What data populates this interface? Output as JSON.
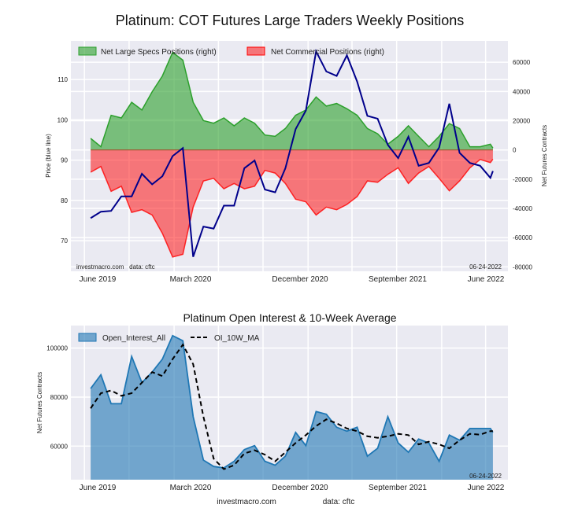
{
  "title": "Platinum: COT Futures Large Traders Weekly Positions",
  "footer": {
    "site": "investmacro.com",
    "source": "data: cftc"
  },
  "colors": {
    "specs": "#2ca02c",
    "commercials": "#ff0000",
    "price": "#00008b",
    "oi": "#1f77b4",
    "ma": "#000000",
    "plot_bg": "#eaeaf2"
  },
  "chart_data": [
    {
      "type": "area",
      "title": "Platinum: COT Futures Large Traders Weekly Positions",
      "ylabel": "Price (blue line)",
      "y2label": "Net Futures Contracts",
      "watermark": "investmacro.com   data: cftc",
      "date_stamp": "06-24-2022",
      "x_tick_labels": [
        "June 2019",
        "March 2020",
        "December 2020",
        "September 2021",
        "June 2022"
      ],
      "y_ticks": [
        70,
        80,
        90,
        100,
        110
      ],
      "y2_ticks": [
        60000,
        40000,
        20000,
        0,
        -20000,
        -40000,
        -60000,
        -80000
      ],
      "ylim": [
        62.4,
        119.6
      ],
      "y2lim": [
        -83000,
        74600
      ],
      "xlim": [
        "2019-04-25",
        "2022-08-01"
      ],
      "grid": true,
      "legend_position": "top-left",
      "x": [
        "2019-06-18",
        "2019-07-16",
        "2019-08-13",
        "2019-09-10",
        "2019-10-08",
        "2019-11-05",
        "2019-12-03",
        "2019-12-31",
        "2020-01-28",
        "2020-02-25",
        "2020-03-24",
        "2020-04-21",
        "2020-05-19",
        "2020-06-16",
        "2020-07-14",
        "2020-08-11",
        "2020-09-08",
        "2020-10-06",
        "2020-11-03",
        "2020-12-01",
        "2020-12-29",
        "2021-01-26",
        "2021-02-23",
        "2021-03-23",
        "2021-04-20",
        "2021-05-18",
        "2021-06-15",
        "2021-07-13",
        "2021-08-10",
        "2021-09-07",
        "2021-10-05",
        "2021-11-02",
        "2021-11-30",
        "2021-12-28",
        "2022-01-25",
        "2022-02-22",
        "2022-03-22",
        "2022-04-19",
        "2022-05-17",
        "2022-06-14",
        "2022-06-21"
      ],
      "series": [
        {
          "name": "Net Large Specs Positions (right)",
          "axis": "right",
          "values": [
            7900,
            2200,
            23700,
            21900,
            32600,
            27300,
            39800,
            50600,
            66700,
            61400,
            32600,
            20100,
            18300,
            21900,
            16500,
            21900,
            18300,
            10200,
            9300,
            14700,
            23700,
            27300,
            36200,
            30000,
            31800,
            28200,
            23700,
            14700,
            11100,
            3900,
            9300,
            16500,
            9300,
            2200,
            9300,
            18000,
            14700,
            2200,
            2200,
            3900,
            1300
          ]
        },
        {
          "name": "Net Commercial Positions (right)",
          "axis": "right",
          "values": [
            -15200,
            -11300,
            -28300,
            -24800,
            -42700,
            -40900,
            -44500,
            -57000,
            -73200,
            -71400,
            -39100,
            -21200,
            -19400,
            -26600,
            -22900,
            -26600,
            -24800,
            -14000,
            -15800,
            -22900,
            -33700,
            -35500,
            -44500,
            -39100,
            -40900,
            -37300,
            -31900,
            -21200,
            -22100,
            -16700,
            -12200,
            -22900,
            -15800,
            -11300,
            -19400,
            -28000,
            -21200,
            -12200,
            -6500,
            -8600,
            -6300
          ]
        },
        {
          "axis": "left",
          "values": [
            75.6,
            77.2,
            77.4,
            81,
            81,
            86.6,
            84,
            86,
            91,
            93,
            66,
            73.5,
            73,
            78.7,
            78.7,
            88,
            89.9,
            82.7,
            82,
            88,
            97.7,
            102.3,
            117,
            112,
            110.9,
            116,
            109.5,
            101,
            100.3,
            93.8,
            90.5,
            95.8,
            88.6,
            89.3,
            93.1,
            104,
            91.8,
            89.3,
            88.6,
            85.6,
            87.3
          ]
        }
      ]
    },
    {
      "type": "area",
      "title": "Platinum Open Interest & 10-Week Average",
      "ylabel": "Net Futures Contracts",
      "date_stamp": "06-24-2022",
      "x_tick_labels": [
        "June 2019",
        "March 2020",
        "December 2020",
        "September 2021",
        "June 2022"
      ],
      "y_ticks": [
        60000,
        80000,
        100000
      ],
      "ylim": [
        46300,
        109200
      ],
      "xlim": [
        "2019-04-25",
        "2022-08-01"
      ],
      "grid": true,
      "legend_position": "top-left",
      "series": [
        {
          "name": "Open_Interest_All",
          "values": [
            83500,
            89100,
            77300,
            77300,
            96600,
            85900,
            90200,
            95500,
            105100,
            103000,
            72000,
            54300,
            51700,
            51100,
            53800,
            58600,
            60200,
            53800,
            52200,
            55900,
            65600,
            60200,
            74100,
            73000,
            67700,
            66100,
            67700,
            55900,
            59100,
            72000,
            61300,
            57500,
            62900,
            61300,
            53800,
            64500,
            62400,
            67200,
            67200,
            67200,
            65600
          ]
        },
        {
          "name": "OI_10W_MA",
          "values": [
            75400,
            81600,
            82700,
            80500,
            81600,
            85900,
            90200,
            88600,
            95500,
            101400,
            93400,
            72000,
            54900,
            50600,
            52200,
            57000,
            58300,
            56500,
            53800,
            57500,
            61300,
            64500,
            68200,
            70900,
            69300,
            67200,
            66100,
            64000,
            63400,
            64000,
            65000,
            64500,
            60700,
            61800,
            60700,
            59100,
            62400,
            65000,
            64700,
            66100,
            66100
          ]
        }
      ]
    }
  ]
}
